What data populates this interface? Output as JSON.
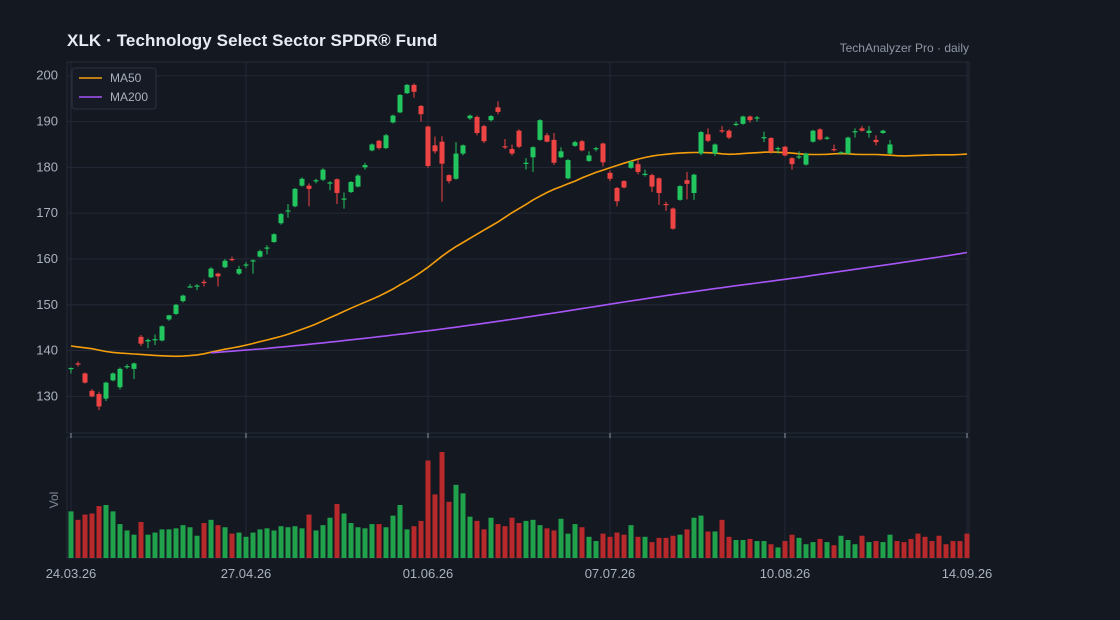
{
  "header": {
    "title": "XLK  ·  Technology Select Sector SPDR® Fund",
    "source": "TechAnalyzer Pro · daily"
  },
  "colors": {
    "background": "#141821",
    "up": "#22c55e",
    "down": "#ef4444",
    "ma50": "#f59e0b",
    "ma200": "#a855f7",
    "grid": "#222836"
  },
  "chart_data": {
    "type": "candlestick",
    "title": "XLK  ·  Technology Select Sector SPDR® Fund",
    "ylim": [
      122,
      203
    ],
    "yticks": [
      130,
      140,
      150,
      160,
      170,
      180,
      190,
      200
    ],
    "xtick_labels": [
      "24.03.26",
      "27.04.26",
      "01.06.26",
      "07.07.26",
      "10.08.26",
      "14.09.26"
    ],
    "xtick_positions": [
      0,
      25,
      51,
      77,
      102,
      128
    ],
    "volume_label": "Vol",
    "legend": [
      {
        "name": "MA50",
        "color": "#f59e0b"
      },
      {
        "name": "MA200",
        "color": "#a855f7"
      }
    ],
    "grid": true,
    "legend_position": "top-left",
    "candles": [
      [
        136.0,
        136.2,
        135.0,
        136.3
      ],
      [
        137.2,
        137.0,
        136.5,
        137.6
      ],
      [
        135.0,
        133.0,
        132.8,
        135.2
      ],
      [
        131.2,
        130.0,
        129.8,
        131.6
      ],
      [
        130.5,
        127.8,
        127.0,
        131.0
      ],
      [
        129.5,
        133.0,
        129.0,
        133.2
      ],
      [
        133.5,
        135.0,
        133.3,
        135.2
      ],
      [
        132.0,
        136.0,
        131.5,
        136.3
      ],
      [
        136.5,
        136.6,
        136.0,
        137.0
      ],
      [
        136.0,
        137.2,
        133.8,
        137.4
      ],
      [
        143.0,
        141.5,
        141.0,
        143.4
      ],
      [
        142.0,
        142.3,
        140.5,
        142.6
      ],
      [
        142.3,
        142.5,
        141.2,
        143.5
      ],
      [
        142.2,
        145.3,
        142.0,
        145.5
      ],
      [
        146.8,
        147.7,
        146.5,
        147.8
      ],
      [
        148.0,
        150.0,
        147.8,
        150.2
      ],
      [
        150.8,
        152.0,
        150.5,
        152.2
      ],
      [
        154.0,
        154.0,
        153.8,
        154.5
      ],
      [
        154.0,
        154.2,
        153.2,
        154.5
      ],
      [
        155.0,
        154.8,
        154.0,
        155.5
      ],
      [
        156.0,
        157.9,
        155.8,
        158.2
      ],
      [
        156.8,
        156.2,
        154.0,
        157.0
      ],
      [
        158.2,
        159.6,
        158.0,
        160.0
      ],
      [
        160.0,
        159.8,
        159.5,
        160.5
      ],
      [
        156.8,
        157.8,
        156.5,
        158.5
      ],
      [
        158.6,
        158.8,
        158.0,
        159.3
      ],
      [
        159.5,
        159.7,
        156.8,
        159.9
      ],
      [
        160.5,
        161.7,
        160.3,
        162.0
      ],
      [
        162.4,
        162.5,
        161.0,
        163.0
      ],
      [
        163.7,
        165.4,
        163.5,
        165.6
      ],
      [
        167.8,
        169.8,
        167.5,
        170.0
      ],
      [
        170.5,
        170.6,
        169.0,
        172.0
      ],
      [
        171.5,
        175.3,
        171.3,
        175.5
      ],
      [
        176.0,
        177.5,
        175.8,
        177.8
      ],
      [
        176.0,
        175.3,
        171.5,
        176.5
      ],
      [
        177.0,
        177.2,
        176.5,
        177.5
      ],
      [
        177.3,
        179.5,
        177.0,
        179.8
      ],
      [
        176.5,
        176.7,
        175.0,
        177.0
      ],
      [
        177.4,
        174.4,
        172.0,
        177.6
      ],
      [
        173.0,
        173.2,
        171.0,
        174.5
      ],
      [
        174.6,
        176.8,
        174.4,
        177.0
      ],
      [
        175.8,
        178.2,
        175.6,
        178.5
      ],
      [
        180.0,
        180.5,
        179.5,
        181.0
      ],
      [
        183.7,
        185.0,
        183.5,
        185.2
      ],
      [
        185.8,
        184.2,
        183.9,
        186.0
      ],
      [
        184.2,
        187.0,
        184.0,
        187.3
      ],
      [
        189.8,
        191.3,
        189.6,
        191.5
      ],
      [
        192.0,
        195.8,
        191.8,
        196.0
      ],
      [
        196.2,
        198.0,
        196.0,
        198.2
      ],
      [
        198.0,
        196.5,
        195.2,
        198.3
      ],
      [
        193.4,
        191.6,
        190.0,
        193.6
      ],
      [
        188.9,
        180.3,
        179.9,
        189.1
      ],
      [
        184.8,
        183.5,
        183.0,
        186.7
      ],
      [
        185.6,
        180.8,
        172.5,
        186.8
      ],
      [
        178.3,
        177.0,
        176.5,
        178.5
      ],
      [
        177.5,
        183.0,
        177.3,
        185.5
      ],
      [
        183.0,
        184.8,
        182.6,
        185.0
      ],
      [
        190.7,
        191.3,
        190.4,
        191.5
      ],
      [
        191.0,
        187.5,
        187.0,
        191.3
      ],
      [
        189.0,
        185.7,
        185.3,
        189.3
      ],
      [
        190.3,
        191.2,
        190.0,
        191.4
      ],
      [
        193.1,
        192.1,
        191.6,
        194.4
      ],
      [
        184.6,
        184.5,
        184.0,
        186.2
      ],
      [
        184.0,
        183.0,
        182.6,
        185.0
      ],
      [
        188.0,
        184.5,
        184.2,
        188.3
      ],
      [
        181.0,
        181.0,
        179.5,
        182.0
      ],
      [
        182.2,
        184.4,
        179.0,
        184.6
      ],
      [
        186.0,
        190.3,
        185.8,
        190.5
      ],
      [
        187.0,
        185.6,
        185.5,
        187.5
      ],
      [
        186.0,
        181.0,
        180.5,
        187.5
      ],
      [
        182.2,
        183.5,
        182.0,
        184.4
      ],
      [
        177.6,
        181.6,
        177.4,
        181.8
      ],
      [
        184.7,
        185.5,
        184.5,
        185.8
      ],
      [
        185.7,
        183.7,
        183.5,
        186.0
      ],
      [
        181.4,
        182.6,
        181.2,
        183.5
      ],
      [
        184.0,
        184.2,
        183.5,
        184.5
      ],
      [
        185.2,
        181.1,
        180.2,
        185.4
      ],
      [
        178.8,
        177.5,
        177.0,
        179.3
      ],
      [
        175.5,
        172.6,
        171.5,
        175.7
      ],
      [
        177.0,
        175.6,
        175.4,
        177.2
      ],
      [
        179.9,
        181.2,
        179.7,
        181.4
      ],
      [
        180.7,
        179.0,
        178.5,
        181.6
      ],
      [
        178.4,
        178.6,
        178.0,
        179.5
      ],
      [
        178.3,
        175.8,
        174.6,
        178.6
      ],
      [
        177.6,
        174.4,
        171.8,
        177.8
      ],
      [
        172.0,
        171.9,
        170.5,
        172.5
      ],
      [
        171.0,
        166.6,
        166.4,
        171.2
      ],
      [
        172.9,
        175.9,
        172.7,
        176.1
      ],
      [
        177.2,
        176.4,
        173.0,
        179.0
      ],
      [
        174.4,
        178.4,
        172.9,
        178.6
      ],
      [
        183.0,
        187.7,
        182.6,
        187.9
      ],
      [
        187.2,
        185.8,
        185.5,
        188.5
      ],
      [
        183.0,
        185.0,
        182.5,
        185.2
      ],
      [
        188.1,
        188.0,
        187.5,
        189.0
      ],
      [
        188.0,
        186.5,
        186.2,
        188.3
      ],
      [
        189.5,
        189.5,
        189.0,
        190.0
      ],
      [
        189.5,
        191.1,
        189.3,
        191.3
      ],
      [
        191.1,
        190.3,
        189.8,
        191.3
      ],
      [
        190.9,
        190.9,
        190.0,
        191.2
      ],
      [
        186.5,
        186.6,
        185.5,
        187.8
      ],
      [
        186.4,
        183.5,
        183.0,
        186.6
      ],
      [
        184.0,
        184.2,
        183.0,
        184.5
      ],
      [
        184.5,
        182.6,
        182.4,
        184.7
      ],
      [
        182.0,
        180.7,
        179.5,
        182.2
      ],
      [
        182.3,
        182.4,
        181.8,
        183.5
      ],
      [
        180.6,
        183.0,
        180.4,
        183.2
      ],
      [
        185.6,
        188.0,
        185.4,
        188.2
      ],
      [
        188.3,
        186.1,
        185.9,
        188.5
      ],
      [
        186.3,
        186.5,
        186.0,
        186.8
      ],
      [
        184.0,
        183.9,
        183.5,
        185.0
      ],
      [
        183.2,
        183.3,
        183.0,
        183.5
      ],
      [
        183.0,
        186.5,
        182.8,
        186.7
      ],
      [
        187.8,
        187.9,
        186.5,
        188.5
      ],
      [
        188.5,
        188.0,
        187.8,
        189.0
      ],
      [
        187.5,
        188.0,
        186.5,
        189.0
      ],
      [
        186.0,
        185.5,
        184.8,
        187.0
      ],
      [
        187.5,
        188.0,
        187.3,
        188.2
      ],
      [
        183.0,
        185.0,
        182.8,
        186.0
      ]
    ],
    "volumes": [
      0.44,
      0.36,
      0.41,
      0.42,
      0.49,
      0.5,
      0.44,
      0.32,
      0.26,
      0.22,
      0.34,
      0.22,
      0.24,
      0.27,
      0.27,
      0.28,
      0.31,
      0.29,
      0.21,
      0.33,
      0.36,
      0.31,
      0.29,
      0.23,
      0.24,
      0.2,
      0.24,
      0.27,
      0.28,
      0.26,
      0.3,
      0.29,
      0.3,
      0.28,
      0.41,
      0.26,
      0.31,
      0.38,
      0.51,
      0.42,
      0.33,
      0.29,
      0.28,
      0.32,
      0.32,
      0.29,
      0.4,
      0.5,
      0.27,
      0.3,
      0.35,
      0.92,
      0.6,
      1.0,
      0.53,
      0.69,
      0.61,
      0.39,
      0.35,
      0.27,
      0.38,
      0.32,
      0.3,
      0.38,
      0.33,
      0.35,
      0.36,
      0.31,
      0.28,
      0.26,
      0.37,
      0.23,
      0.32,
      0.29,
      0.2,
      0.16,
      0.23,
      0.2,
      0.24,
      0.22,
      0.31,
      0.2,
      0.2,
      0.15,
      0.19,
      0.19,
      0.21,
      0.22,
      0.27,
      0.38,
      0.4,
      0.25,
      0.25,
      0.36,
      0.2,
      0.17,
      0.17,
      0.18,
      0.16,
      0.16,
      0.13,
      0.1,
      0.16,
      0.22,
      0.19,
      0.13,
      0.15,
      0.18,
      0.15,
      0.12,
      0.21,
      0.17,
      0.13,
      0.21,
      0.15,
      0.16,
      0.15,
      0.22,
      0.16,
      0.15,
      0.18,
      0.23,
      0.2,
      0.16,
      0.21,
      0.13,
      0.16,
      0.16,
      0.23
    ],
    "ma50": [
      141.0,
      140.8,
      140.6,
      140.4,
      140.1,
      139.8,
      139.6,
      139.45,
      139.35,
      139.25,
      139.15,
      139.05,
      138.95,
      138.85,
      138.8,
      138.75,
      138.8,
      138.9,
      139.05,
      139.3,
      139.65,
      140.0,
      140.3,
      140.55,
      140.85,
      141.2,
      141.55,
      141.95,
      142.3,
      142.7,
      143.1,
      143.55,
      144.1,
      144.65,
      145.2,
      145.8,
      146.5,
      147.2,
      147.85,
      148.55,
      149.25,
      149.9,
      150.55,
      151.2,
      151.9,
      152.65,
      153.45,
      154.35,
      155.2,
      156.1,
      157.1,
      158.2,
      159.4,
      160.6,
      161.7,
      162.7,
      163.6,
      164.5,
      165.4,
      166.3,
      167.2,
      168.1,
      169.1,
      170.1,
      171.0,
      171.9,
      172.9,
      173.7,
      174.5,
      175.2,
      175.8,
      176.4,
      177.0,
      177.7,
      178.3,
      178.9,
      179.4,
      179.9,
      180.4,
      180.9,
      181.35,
      181.8,
      182.15,
      182.45,
      182.7,
      182.85,
      183.0,
      183.1,
      183.2,
      183.25,
      183.25,
      183.2,
      183.1,
      182.95,
      182.85,
      182.9,
      183.0,
      183.1,
      183.2,
      183.3,
      183.35,
      183.3,
      183.2,
      183.1,
      182.95,
      182.85,
      182.8,
      182.8,
      182.85,
      182.95,
      183.0,
      182.95,
      182.85,
      182.8,
      182.8,
      182.8,
      182.75,
      182.65,
      182.55,
      182.5,
      182.55,
      182.6,
      182.65,
      182.7,
      182.75,
      182.75,
      182.75,
      182.8,
      182.9
    ],
    "ma200_start": 20,
    "ma200": [
      139.5,
      139.62,
      139.74,
      139.86,
      139.98,
      140.1,
      140.22,
      140.35,
      140.48,
      140.62,
      140.76,
      140.9,
      141.05,
      141.2,
      141.36,
      141.52,
      141.68,
      141.84,
      142.0,
      142.17,
      142.34,
      142.51,
      142.68,
      142.85,
      143.03,
      143.21,
      143.39,
      143.57,
      143.75,
      143.94,
      144.13,
      144.32,
      144.51,
      144.71,
      144.91,
      145.11,
      145.32,
      145.53,
      145.74,
      145.95,
      146.17,
      146.39,
      146.61,
      146.83,
      147.05,
      147.28,
      147.51,
      147.74,
      147.97,
      148.2,
      148.44,
      148.68,
      148.92,
      149.16,
      149.4,
      149.64,
      149.88,
      150.12,
      150.36,
      150.6,
      150.84,
      151.07,
      151.3,
      151.53,
      151.76,
      151.99,
      152.22,
      152.44,
      152.66,
      152.88,
      153.1,
      153.31,
      153.52,
      153.73,
      153.94,
      154.15,
      154.35,
      154.55,
      154.75,
      154.95,
      155.15,
      155.35,
      155.56,
      155.77,
      155.98,
      156.2,
      156.42,
      156.64,
      156.86,
      157.08,
      157.3,
      157.52,
      157.74,
      157.96,
      158.18,
      158.4,
      158.62,
      158.84,
      159.06,
      159.28,
      159.5,
      159.73,
      159.96,
      160.19,
      160.42,
      160.66,
      160.9,
      161.14,
      161.4
    ]
  }
}
